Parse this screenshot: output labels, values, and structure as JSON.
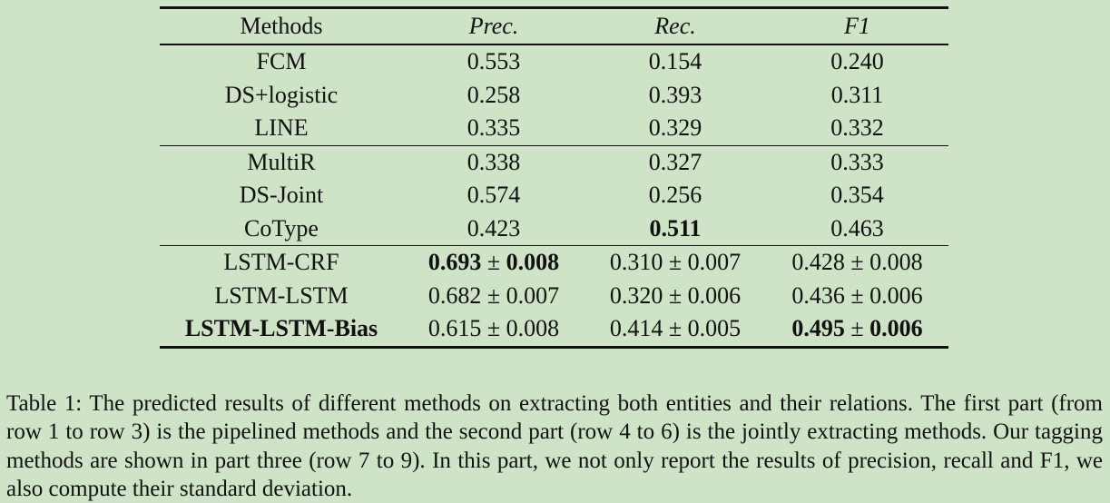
{
  "table": {
    "headers": {
      "methods": "Methods",
      "prec": "Prec.",
      "rec": "Rec.",
      "f1": "F1"
    },
    "rows": [
      {
        "method": "FCM",
        "prec": "0.553",
        "rec": "0.154",
        "f1": "0.240"
      },
      {
        "method": "DS+logistic",
        "prec": "0.258",
        "rec": "0.393",
        "f1": "0.311"
      },
      {
        "method": "LINE",
        "prec": "0.335",
        "rec": "0.329",
        "f1": "0.332"
      },
      {
        "method": "MultiR",
        "prec": "0.338",
        "rec": "0.327",
        "f1": "0.333"
      },
      {
        "method": "DS-Joint",
        "prec": "0.574",
        "rec": "0.256",
        "f1": "0.354"
      },
      {
        "method": "CoType",
        "prec": "0.423",
        "rec": "0.511",
        "f1": "0.463"
      },
      {
        "method": "LSTM-CRF",
        "prec_value": "0.693",
        "prec_pm": "±",
        "prec_sd": "0.008",
        "rec_value": "0.310",
        "rec_pm": "±",
        "rec_sd": "0.007",
        "f1_value": "0.428",
        "f1_pm": "±",
        "f1_sd": "0.008"
      },
      {
        "method": "LSTM-LSTM",
        "prec_value": "0.682",
        "prec_pm": "±",
        "prec_sd": "0.007",
        "rec_value": "0.320",
        "rec_pm": "±",
        "rec_sd": "0.006",
        "f1_value": "0.436",
        "f1_pm": "±",
        "f1_sd": "0.006"
      },
      {
        "method": "LSTM-LSTM-Bias",
        "prec_value": "0.615",
        "prec_pm": "±",
        "prec_sd": "0.008",
        "rec_value": "0.414",
        "rec_pm": "±",
        "rec_sd": "0.005",
        "f1_value": "0.495",
        "f1_pm": "±",
        "f1_sd": "0.006"
      }
    ]
  },
  "caption": "Table 1: The predicted results of different methods on extracting both entities and their relations. The first part (from row 1 to row 3) is the pipelined methods and the second part (row 4 to 6) is the jointly extracting methods. Our tagging methods are shown in part three (row 7 to 9). In this part, we not only report the results of precision, recall and F1, we also compute their standard deviation."
}
